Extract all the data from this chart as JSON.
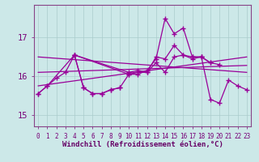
{
  "bg_color": "#cce8e8",
  "grid_color": "#aacccc",
  "line_color": "#990099",
  "xlabel": "Windchill (Refroidissement éolien,°C)",
  "yticks": [
    15,
    16,
    17
  ],
  "xticks": [
    0,
    1,
    2,
    3,
    4,
    5,
    6,
    7,
    8,
    9,
    10,
    11,
    12,
    13,
    14,
    15,
    16,
    17,
    18,
    19,
    20,
    21,
    22,
    23
  ],
  "xlim": [
    -0.5,
    23.5
  ],
  "ylim": [
    14.7,
    17.85
  ],
  "series": [
    {
      "x": [
        0,
        1,
        4,
        5,
        6,
        7,
        8,
        9
      ],
      "y": [
        15.55,
        15.75,
        16.55,
        15.7,
        15.55,
        15.55,
        15.65,
        15.7
      ]
    },
    {
      "x": [
        0,
        1,
        2,
        3,
        4,
        5,
        6,
        7,
        8,
        9,
        10,
        11,
        12,
        13,
        14,
        15,
        16,
        17,
        18,
        19,
        20,
        21,
        22,
        23
      ],
      "y": [
        15.55,
        15.75,
        15.95,
        16.1,
        16.55,
        15.7,
        15.55,
        15.55,
        15.65,
        15.7,
        16.05,
        16.05,
        16.15,
        16.45,
        17.5,
        17.1,
        17.25,
        16.5,
        16.5,
        15.4,
        15.3,
        15.9,
        15.75,
        15.65
      ]
    },
    {
      "x": [
        4,
        10,
        11,
        12,
        13,
        14,
        15,
        16,
        17,
        18,
        19,
        20
      ],
      "y": [
        16.55,
        16.1,
        16.15,
        16.1,
        16.35,
        16.1,
        16.5,
        16.55,
        16.45,
        16.5,
        16.35,
        16.3
      ]
    },
    {
      "x": [
        4,
        10,
        11,
        12,
        13,
        14,
        15,
        16,
        17,
        18,
        19
      ],
      "y": [
        16.55,
        16.05,
        16.1,
        16.1,
        16.5,
        16.45,
        16.8,
        16.55,
        16.5,
        16.5,
        16.35
      ]
    }
  ],
  "reg_lines": [
    {
      "x0": 0,
      "x1": 23,
      "y0": 16.5,
      "y1": 16.1
    },
    {
      "x0": 0,
      "x1": 23,
      "y0": 16.1,
      "y1": 16.28
    },
    {
      "x0": 0,
      "x1": 23,
      "y0": 15.75,
      "y1": 16.5
    }
  ]
}
